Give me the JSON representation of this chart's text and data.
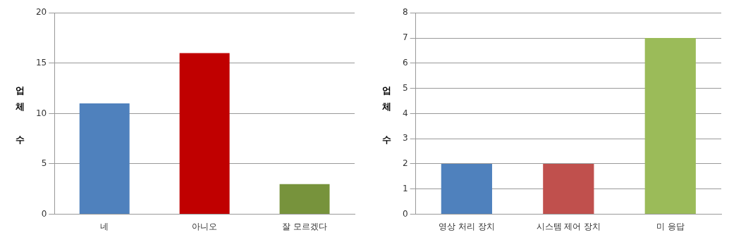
{
  "chart_data": [
    {
      "type": "bar",
      "ylabel": "업체 수",
      "categories": [
        "네",
        "아니오",
        "잘 모르겠다"
      ],
      "values": [
        11,
        16,
        3
      ],
      "colors": [
        "#4f81bd",
        "#c00000",
        "#77933c"
      ],
      "ylim": [
        0,
        20
      ],
      "yticks": [
        0,
        5,
        10,
        15,
        20
      ],
      "grid": "y",
      "legend": false
    },
    {
      "type": "bar",
      "ylabel": "업체 수",
      "categories": [
        "영상 처리 장치",
        "시스템 제어 장치",
        "미 응답"
      ],
      "values": [
        2,
        2,
        7
      ],
      "colors": [
        "#4f81bd",
        "#c0504d",
        "#9bbb59"
      ],
      "ylim": [
        0,
        8
      ],
      "yticks": [
        0,
        1,
        2,
        3,
        4,
        5,
        6,
        7,
        8
      ],
      "grid": "y",
      "legend": false
    }
  ]
}
